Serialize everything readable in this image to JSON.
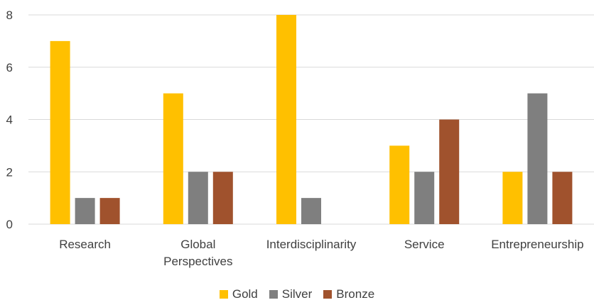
{
  "chart_data": {
    "type": "bar",
    "categories": [
      [
        "Research"
      ],
      [
        "Global",
        "Perspectives"
      ],
      [
        "Interdisciplinarity"
      ],
      [
        "Service"
      ],
      [
        "Entrepreneurship"
      ]
    ],
    "series": [
      {
        "name": "Gold",
        "color": "#FFC000",
        "values": [
          7,
          5,
          8,
          3,
          2
        ]
      },
      {
        "name": "Silver",
        "color": "#7F7F7F",
        "values": [
          1,
          2,
          1,
          2,
          5
        ]
      },
      {
        "name": "Bronze",
        "color": "#A0522D",
        "values": [
          1,
          2,
          0,
          4,
          2
        ]
      }
    ],
    "ylim": [
      0,
      8
    ],
    "yticks": [
      "0",
      "2",
      "4",
      "6",
      "8"
    ],
    "grid": true,
    "legend_position": "bottom",
    "title": "",
    "xlabel": "",
    "ylabel": ""
  }
}
